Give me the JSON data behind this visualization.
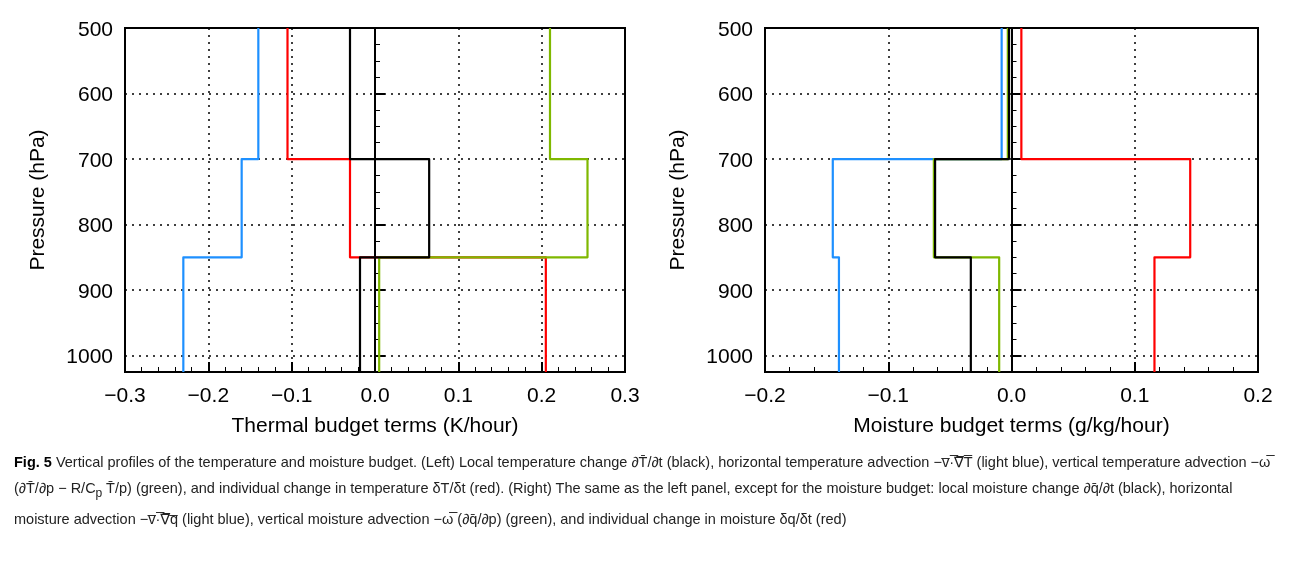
{
  "chart_data": [
    {
      "type": "line",
      "xlabel": "Thermal budget terms (K/hour)",
      "ylabel": "Pressure (hPa)",
      "xlim": [
        -0.3,
        0.3
      ],
      "xticks": [
        {
          "value": -0.3,
          "label": "−0.3"
        },
        {
          "value": -0.2,
          "label": "−0.2"
        },
        {
          "value": -0.1,
          "label": "−0.1"
        },
        {
          "value": 0,
          "label": "0.0"
        },
        {
          "value": 0.1,
          "label": "0.1"
        },
        {
          "value": 0.2,
          "label": "0.2"
        },
        {
          "value": 0.3,
          "label": "0.3"
        }
      ],
      "ylim": [
        1025,
        500
      ],
      "yticks": [
        500,
        600,
        700,
        800,
        900,
        1000
      ],
      "grid": true,
      "marker": "none",
      "line_style": "solid",
      "series": [
        {
          "color": "#1e90ff",
          "x": [
            -0.14,
            -0.14,
            -0.16,
            -0.16,
            -0.23,
            -0.23
          ],
          "values": [
            500,
            700,
            700,
            850,
            850,
            1025
          ]
        },
        {
          "color": "#ff0000",
          "x": [
            -0.105,
            -0.105,
            -0.03,
            -0.03,
            0.205,
            0.205
          ],
          "values": [
            500,
            700,
            700,
            850,
            850,
            1025
          ]
        },
        {
          "color": "#7fb800",
          "x": [
            0.21,
            0.21,
            0.255,
            0.255,
            0.005,
            0.005
          ],
          "values": [
            500,
            700,
            700,
            850,
            850,
            1025
          ]
        },
        {
          "color": "#000000",
          "x": [
            -0.03,
            -0.03,
            0.065,
            0.065,
            -0.018,
            -0.018
          ],
          "values": [
            500,
            700,
            700,
            850,
            850,
            1025
          ]
        }
      ],
      "ref_lines": [
        {
          "axis": "x",
          "value": 0,
          "label": null,
          "color": "#000000"
        }
      ],
      "annotations": [
        "Fig. 5",
        "Vertical profiles of the temperature and moisture budget. (Left) Local temperature change ∂T̄/∂t (black), horizontal temperature advection −v̅·̅∇̅T̅ (light blue), vertical temperature advection −ω̅ (∂T̄/∂p − R/C$_{p}$ T̄/p) (green), and individual change in temperature δT/δt (red). (Right) The same as the left panel, except for the moisture budget: local moisture change ∂q̄/∂t (black), horizontal moisture advection −v̅·̅∇̅q̅ (light blue), vertical moisture advection −ω̅ (∂q̄/∂p) (green), and individual change in moisture δq/δt (red)"
      ]
    },
    {
      "type": "line",
      "xlabel": "Moisture budget terms (g/kg/hour)",
      "ylabel": "Pressure (hPa)",
      "xlim": [
        -0.2,
        0.2
      ],
      "xticks": [
        {
          "value": -0.2,
          "label": "−0.2"
        },
        {
          "value": -0.1,
          "label": "−0.1"
        },
        {
          "value": 0,
          "label": "0.0"
        },
        {
          "value": 0.1,
          "label": "0.1"
        },
        {
          "value": 0.2,
          "label": "0.2"
        }
      ],
      "ylim": [
        1025,
        500
      ],
      "yticks": [
        500,
        600,
        700,
        800,
        900,
        1000
      ],
      "grid": true,
      "marker": "none",
      "line_style": "solid",
      "series": [
        {
          "color": "#1e90ff",
          "x": [
            -0.008,
            -0.008,
            -0.145,
            -0.145,
            -0.14,
            -0.14
          ],
          "values": [
            500,
            700,
            700,
            850,
            850,
            1025
          ]
        },
        {
          "color": "#ff0000",
          "x": [
            0.008,
            0.008,
            0.145,
            0.145,
            0.116,
            0.116
          ],
          "values": [
            500,
            700,
            700,
            850,
            850,
            1025
          ]
        },
        {
          "color": "#7fb800",
          "x": [
            -0.003,
            -0.003,
            -0.063,
            -0.063,
            -0.01,
            -0.01
          ],
          "values": [
            500,
            700,
            700,
            850,
            850,
            1025
          ]
        },
        {
          "color": "#000000",
          "x": [
            -0.002,
            -0.002,
            -0.062,
            -0.062,
            -0.033,
            -0.033
          ],
          "values": [
            500,
            700,
            700,
            850,
            850,
            1025
          ]
        }
      ],
      "ref_lines": [
        {
          "axis": "x",
          "value": 0,
          "label": null,
          "color": "#000000"
        }
      ]
    }
  ]
}
